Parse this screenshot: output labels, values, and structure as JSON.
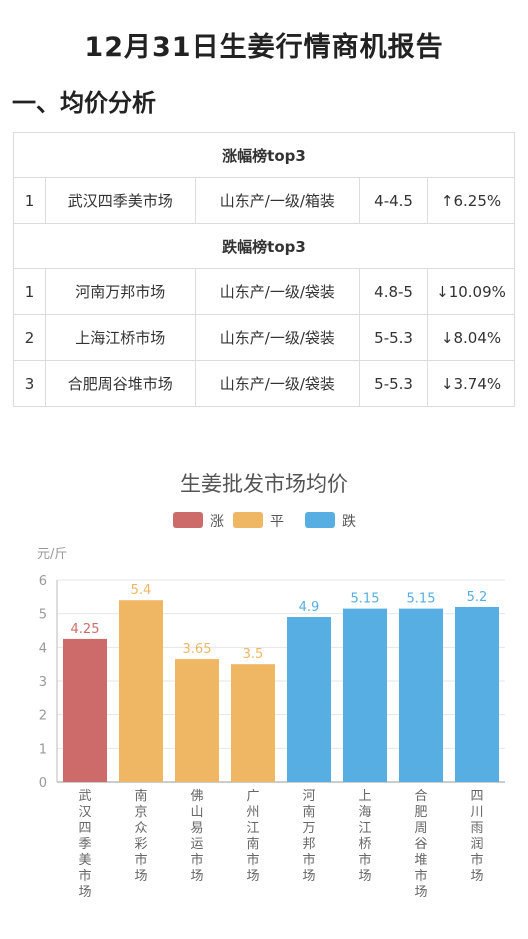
{
  "report_title": "12月31日生姜行情商机报告",
  "section_title": "一、均价分析",
  "rise_header": "涨幅榜top3",
  "fall_header": "跌幅榜top3",
  "rise_rows": [
    {
      "rank": "1",
      "market": "武汉四季美市场",
      "spec": "山东产/一级/箱装",
      "price": "4-4.5",
      "change": "↑6.25%"
    }
  ],
  "fall_rows": [
    {
      "rank": "1",
      "market": "河南万邦市场",
      "spec": "山东产/一级/袋装",
      "price": "4.8-5",
      "change": "↓10.09%"
    },
    {
      "rank": "2",
      "market": "上海江桥市场",
      "spec": "山东产/一级/袋装",
      "price": "5-5.3",
      "change": "↓8.04%"
    },
    {
      "rank": "3",
      "market": "合肥周谷堆市场",
      "spec": "山东产/一级/袋装",
      "price": "5-5.3",
      "change": "↓3.74%"
    }
  ],
  "colors": {
    "rise": "#cd6b6b",
    "flat": "#efb764",
    "fall": "#56aee3"
  },
  "chart_data": {
    "type": "bar",
    "title": "生姜批发市场均价",
    "ylabel": "元/斤",
    "ylim": [
      0,
      6
    ],
    "yticks": [
      "0",
      "1",
      "2",
      "3",
      "4",
      "5",
      "6"
    ],
    "legend": [
      {
        "name": "涨",
        "status": "rise"
      },
      {
        "name": "平",
        "status": "flat"
      },
      {
        "name": "跌",
        "status": "fall"
      }
    ],
    "legend_position": "top-center",
    "categories": [
      "武汉四季美市场",
      "南京众彩市场",
      "佛山易运市场",
      "广州江南市场",
      "河南万邦市场",
      "上海江桥市场",
      "合肥周谷堆市场",
      "四川雨润市场"
    ],
    "values": [
      4.25,
      5.4,
      3.65,
      3.5,
      4.9,
      5.15,
      5.15,
      5.2
    ],
    "labels": [
      "4.25",
      "5.4",
      "3.65",
      "3.5",
      "4.9",
      "5.15",
      "5.15",
      "5.2"
    ],
    "status": [
      "rise",
      "flat",
      "flat",
      "flat",
      "fall",
      "fall",
      "fall",
      "fall"
    ]
  }
}
